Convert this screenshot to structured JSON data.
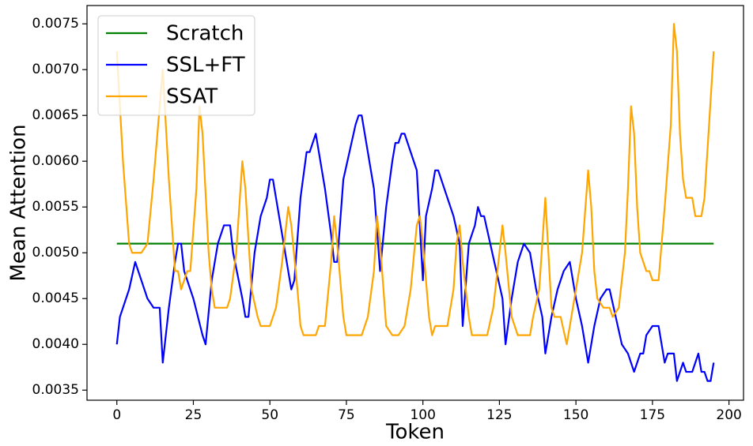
{
  "chart_data": {
    "type": "line",
    "x_label": "Token",
    "y_label": "Mean Attention",
    "xlim": [
      -9.75,
      204.75
    ],
    "xticks": [
      0,
      25,
      50,
      75,
      100,
      125,
      150,
      175,
      200
    ],
    "ylim": [
      0.00339,
      0.0077
    ],
    "yticks": [
      0.0035,
      {
        "value": 0.004,
        "label": "0.0040"
      },
      0.0045,
      {
        "value": 0.005,
        "label": "0.0050"
      },
      0.0055,
      {
        "value": 0.006,
        "label": "0.0060"
      },
      0.0065,
      {
        "value": 0.007,
        "label": "0.0070"
      },
      0.0075
    ],
    "grid": false,
    "legend": "upper left",
    "series": [
      {
        "name": "Scratch",
        "color": "#008000",
        "x": [
          0,
          195
        ],
        "values": [
          0.0051,
          0.0051
        ]
      },
      {
        "name": "SSL+FT",
        "color": "#0000ff",
        "x": [
          0,
          1,
          4,
          6,
          10,
          12,
          14,
          15,
          17,
          19,
          20,
          21,
          22,
          25,
          28,
          29,
          31,
          33,
          35,
          37,
          38,
          41,
          42,
          43,
          45,
          47,
          49,
          50,
          51,
          53,
          55,
          57,
          58,
          60,
          62,
          63,
          65,
          68,
          70,
          71,
          72,
          74,
          76,
          78,
          79,
          80,
          82,
          84,
          86,
          88,
          90,
          91,
          92,
          93,
          94,
          97,
          98,
          100,
          101,
          103,
          104,
          105,
          108,
          110,
          112,
          113,
          115,
          117,
          118,
          119,
          120,
          122,
          124,
          126,
          127,
          129,
          131,
          133,
          135,
          137,
          139,
          140,
          142,
          144,
          146,
          148,
          150,
          152,
          154,
          156,
          158,
          160,
          161,
          163,
          165,
          167,
          169,
          171,
          172,
          173,
          175,
          177,
          179,
          180,
          182,
          183,
          185,
          186,
          188,
          190,
          191,
          192,
          193,
          194,
          195
        ],
        "values": [
          0.004,
          0.0043,
          0.0046,
          0.0049,
          0.0045,
          0.0044,
          0.0044,
          0.0038,
          0.0044,
          0.0049,
          0.0051,
          0.0051,
          0.0048,
          0.0045,
          0.0041,
          0.004,
          0.0047,
          0.0051,
          0.0053,
          0.0053,
          0.005,
          0.0045,
          0.0043,
          0.0043,
          0.005,
          0.0054,
          0.0056,
          0.0058,
          0.0058,
          0.0054,
          0.005,
          0.0046,
          0.0047,
          0.0056,
          0.0061,
          0.0061,
          0.0063,
          0.0057,
          0.0052,
          0.0049,
          0.0049,
          0.0058,
          0.0061,
          0.0064,
          0.0065,
          0.0065,
          0.0061,
          0.0057,
          0.0048,
          0.0055,
          0.006,
          0.0062,
          0.0062,
          0.0063,
          0.0063,
          0.006,
          0.0059,
          0.0047,
          0.0054,
          0.0057,
          0.0059,
          0.0059,
          0.0056,
          0.0054,
          0.0051,
          0.0042,
          0.0051,
          0.0053,
          0.0055,
          0.0054,
          0.0054,
          0.0051,
          0.0048,
          0.0045,
          0.004,
          0.0045,
          0.0049,
          0.0051,
          0.005,
          0.0046,
          0.0043,
          0.0039,
          0.0043,
          0.0046,
          0.0048,
          0.0049,
          0.0045,
          0.0042,
          0.0038,
          0.0042,
          0.0045,
          0.0046,
          0.0046,
          0.0043,
          0.004,
          0.0039,
          0.0037,
          0.0039,
          0.0039,
          0.0041,
          0.0042,
          0.0042,
          0.0038,
          0.0039,
          0.0039,
          0.0036,
          0.0038,
          0.0037,
          0.0037,
          0.0039,
          0.0037,
          0.0037,
          0.0036,
          0.0036,
          0.0038
        ]
      },
      {
        "name": "SSAT",
        "color": "#ffa500",
        "x": [
          0,
          2,
          4,
          5,
          8,
          10,
          12,
          14,
          15,
          17,
          19,
          20,
          21,
          23,
          24,
          26,
          27,
          28,
          30,
          31,
          32,
          36,
          37,
          39,
          41,
          42,
          44,
          46,
          47,
          50,
          52,
          54,
          56,
          57,
          59,
          60,
          61,
          65,
          66,
          68,
          70,
          71,
          72,
          74,
          75,
          80,
          82,
          84,
          85,
          86,
          88,
          90,
          92,
          94,
          96,
          98,
          99,
          100,
          102,
          103,
          104,
          108,
          110,
          111,
          112,
          113,
          115,
          116,
          121,
          123,
          125,
          126,
          127,
          129,
          131,
          135,
          136,
          138,
          140,
          141,
          142,
          143,
          145,
          147,
          149,
          152,
          154,
          155,
          156,
          157,
          159,
          161,
          162,
          164,
          166,
          167,
          168,
          169,
          170,
          171,
          173,
          174,
          175,
          177,
          179,
          181,
          182,
          183,
          184,
          185,
          186,
          188,
          189,
          191,
          192,
          195
        ],
        "values": [
          0.0072,
          0.006,
          0.0051,
          0.005,
          0.005,
          0.0051,
          0.0058,
          0.0066,
          0.007,
          0.0058,
          0.0048,
          0.0048,
          0.0046,
          0.0048,
          0.0048,
          0.0057,
          0.0066,
          0.0063,
          0.005,
          0.0046,
          0.0044,
          0.0044,
          0.0045,
          0.005,
          0.006,
          0.0057,
          0.0046,
          0.0043,
          0.0042,
          0.0042,
          0.0044,
          0.0049,
          0.0055,
          0.0053,
          0.0046,
          0.0042,
          0.0041,
          0.0041,
          0.0042,
          0.0042,
          0.0049,
          0.0054,
          0.0051,
          0.0043,
          0.0041,
          0.0041,
          0.0043,
          0.0048,
          0.0054,
          0.0051,
          0.0042,
          0.0041,
          0.0041,
          0.0042,
          0.0046,
          0.0053,
          0.0054,
          0.0051,
          0.0043,
          0.0041,
          0.0042,
          0.0042,
          0.0046,
          0.0051,
          0.0053,
          0.0049,
          0.0043,
          0.0041,
          0.0041,
          0.0044,
          0.005,
          0.0053,
          0.005,
          0.0043,
          0.0041,
          0.0041,
          0.0043,
          0.0046,
          0.0056,
          0.005,
          0.0044,
          0.0043,
          0.0043,
          0.004,
          0.0044,
          0.005,
          0.0059,
          0.0055,
          0.0048,
          0.0045,
          0.0044,
          0.0044,
          0.0043,
          0.0044,
          0.005,
          0.0057,
          0.0066,
          0.0063,
          0.0055,
          0.005,
          0.0048,
          0.0048,
          0.0047,
          0.0047,
          0.0055,
          0.0064,
          0.0075,
          0.0072,
          0.0063,
          0.0058,
          0.0056,
          0.0056,
          0.0054,
          0.0054,
          0.0056,
          0.0072
        ]
      }
    ]
  }
}
